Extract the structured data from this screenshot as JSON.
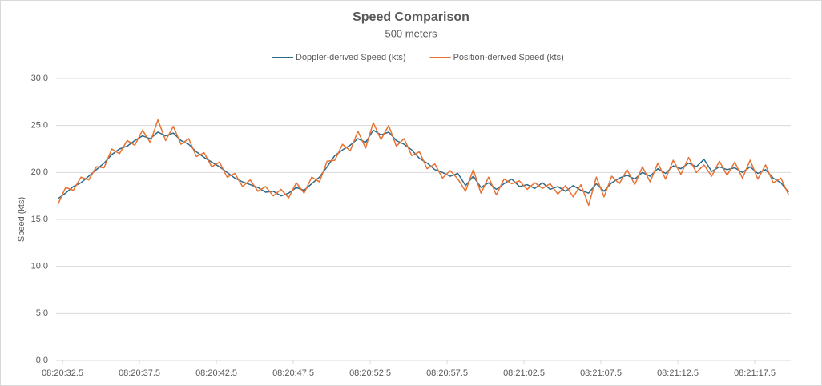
{
  "chart_data": {
    "type": "line",
    "title": "Speed Comparison",
    "subtitle": "500 meters",
    "y_label": "Speed (kts)",
    "legend": "top",
    "grid": true,
    "x": [
      1232.2,
      1232.7,
      1233.2,
      1233.7,
      1234.2,
      1234.7,
      1235.2,
      1235.7,
      1236.2,
      1236.7,
      1237.2,
      1237.7,
      1238.2,
      1238.7,
      1239.2,
      1239.7,
      1240.2,
      1240.7,
      1241.2,
      1241.7,
      1242.2,
      1242.7,
      1243.2,
      1243.7,
      1244.2,
      1244.7,
      1245.2,
      1245.7,
      1246.2,
      1246.7,
      1247.2,
      1247.7,
      1248.2,
      1248.7,
      1249.2,
      1249.7,
      1250.2,
      1250.7,
      1251.2,
      1251.7,
      1252.2,
      1252.7,
      1253.2,
      1253.7,
      1254.2,
      1254.7,
      1255.2,
      1255.7,
      1256.2,
      1256.7,
      1257.2,
      1257.7,
      1258.2,
      1258.7,
      1259.2,
      1259.7,
      1260.2,
      1260.7,
      1261.2,
      1261.7,
      1262.2,
      1262.7,
      1263.2,
      1263.7,
      1264.2,
      1264.7,
      1265.2,
      1265.7,
      1266.2,
      1266.7,
      1267.2,
      1267.7,
      1268.2,
      1268.7,
      1269.2,
      1269.7,
      1270.2,
      1270.7,
      1271.2,
      1271.7,
      1272.2,
      1272.7,
      1273.2,
      1273.7,
      1274.2,
      1274.7,
      1275.2,
      1275.7,
      1276.2,
      1276.7,
      1277.2,
      1277.7,
      1278.2,
      1278.7,
      1279.2,
      1279.7
    ],
    "xlim": [
      1232.08,
      1279.84
    ],
    "xticks": [
      {
        "value": 1232.5,
        "label": "08:20:32.5"
      },
      {
        "value": 1237.5,
        "label": "08:20:37.5"
      },
      {
        "value": 1242.5,
        "label": "08:20:42.5"
      },
      {
        "value": 1247.5,
        "label": "08:20:47.5"
      },
      {
        "value": 1252.5,
        "label": "08:20:52.5"
      },
      {
        "value": 1257.5,
        "label": "08:20:57.5"
      },
      {
        "value": 1262.5,
        "label": "08:21:02.5"
      },
      {
        "value": 1267.5,
        "label": "08:21:07.5"
      },
      {
        "value": 1272.5,
        "label": "08:21:12.5"
      },
      {
        "value": 1277.5,
        "label": "08:21:17.5"
      }
    ],
    "ylim": [
      0,
      30
    ],
    "yticks": [
      {
        "value": 0,
        "label": "0.0"
      },
      {
        "value": 5,
        "label": "5.0"
      },
      {
        "value": 10,
        "label": "10.0"
      },
      {
        "value": 15,
        "label": "15.0"
      },
      {
        "value": 20,
        "label": "20.0"
      },
      {
        "value": 25,
        "label": "25.0"
      },
      {
        "value": 30,
        "label": "30.0"
      }
    ],
    "series": [
      {
        "name": "Doppler-derived Speed (kts)",
        "color": "#2e6b8a",
        "values": [
          17.2,
          17.8,
          18.5,
          18.9,
          19.6,
          20.3,
          21.0,
          21.9,
          22.5,
          22.8,
          23.4,
          23.9,
          23.6,
          24.3,
          23.9,
          24.2,
          23.4,
          23.0,
          22.2,
          21.6,
          21.1,
          20.6,
          20.0,
          19.4,
          19.0,
          18.7,
          18.4,
          17.9,
          18.0,
          17.5,
          17.8,
          18.4,
          18.1,
          18.8,
          19.5,
          20.6,
          21.8,
          22.4,
          22.9,
          23.6,
          23.2,
          24.5,
          24.0,
          24.3,
          23.4,
          23.0,
          22.4,
          21.5,
          21.0,
          20.3,
          20.0,
          19.6,
          19.9,
          18.6,
          19.6,
          18.4,
          18.9,
          18.2,
          18.8,
          19.3,
          18.5,
          18.7,
          18.3,
          18.9,
          18.2,
          18.5,
          18.0,
          18.6,
          18.1,
          17.8,
          18.8,
          18.0,
          18.9,
          19.4,
          19.7,
          19.3,
          20.0,
          19.6,
          20.4,
          19.9,
          20.7,
          20.4,
          21.0,
          20.6,
          21.4,
          20.1,
          20.6,
          20.3,
          20.5,
          20.0,
          20.6,
          19.9,
          20.3,
          19.4,
          18.9,
          17.9
        ]
      },
      {
        "name": "Position-derived Speed (kts)",
        "color": "#e97132",
        "values": [
          16.6,
          18.4,
          18.1,
          19.5,
          19.2,
          20.6,
          20.5,
          22.5,
          22.0,
          23.4,
          22.9,
          24.5,
          23.2,
          25.6,
          23.4,
          24.9,
          23.0,
          23.6,
          21.7,
          22.1,
          20.6,
          21.1,
          19.5,
          19.9,
          18.5,
          19.2,
          18.0,
          18.5,
          17.5,
          18.2,
          17.3,
          18.9,
          17.8,
          19.5,
          19.0,
          21.2,
          21.3,
          23.0,
          22.3,
          24.4,
          22.6,
          25.3,
          23.5,
          25.0,
          22.8,
          23.6,
          21.8,
          22.2,
          20.4,
          20.9,
          19.4,
          20.2,
          19.3,
          18.0,
          20.3,
          17.8,
          19.5,
          17.6,
          19.3,
          18.8,
          19.1,
          18.2,
          18.9,
          18.3,
          18.8,
          17.7,
          18.6,
          17.4,
          18.7,
          16.5,
          19.5,
          17.4,
          19.6,
          18.8,
          20.3,
          18.7,
          20.6,
          19.0,
          21.0,
          19.3,
          21.3,
          19.8,
          21.6,
          20.0,
          20.8,
          19.6,
          21.2,
          19.7,
          21.1,
          19.4,
          21.3,
          19.3,
          20.8,
          18.9,
          19.4,
          17.6
        ]
      }
    ]
  }
}
